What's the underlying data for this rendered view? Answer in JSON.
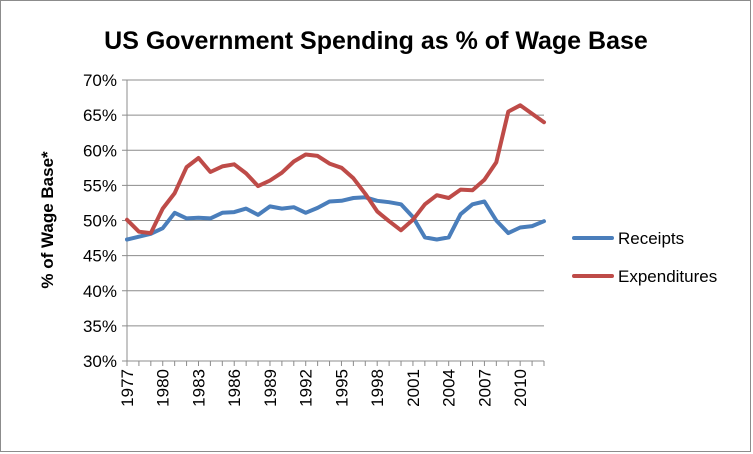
{
  "chart_data": {
    "type": "line",
    "title": "US Government Spending as % of Wage Base",
    "xlabel": "",
    "ylabel": "% of Wage Base*",
    "x": [
      1977,
      1978,
      1979,
      1980,
      1981,
      1982,
      1983,
      1984,
      1985,
      1986,
      1987,
      1988,
      1989,
      1990,
      1991,
      1992,
      1993,
      1994,
      1995,
      1996,
      1997,
      1998,
      1999,
      2000,
      2001,
      2002,
      2003,
      2004,
      2005,
      2006,
      2007,
      2008,
      2009,
      2010,
      2011,
      2012
    ],
    "x_tick_labels": [
      "1977",
      "1980",
      "1983",
      "1986",
      "1989",
      "1992",
      "1995",
      "1998",
      "2001",
      "2004",
      "2007",
      "2010"
    ],
    "ylim": [
      30,
      70
    ],
    "y_tick_labels": [
      "30%",
      "35%",
      "40%",
      "45%",
      "50%",
      "55%",
      "60%",
      "65%",
      "70%"
    ],
    "grid": true,
    "legend_position": "right",
    "series": [
      {
        "name": "Receipts",
        "color": "#4a7ebb",
        "values": [
          47.3,
          47.7,
          48.1,
          48.9,
          51.1,
          50.3,
          50.4,
          50.3,
          51.1,
          51.2,
          51.7,
          50.8,
          52.0,
          51.7,
          51.9,
          51.1,
          51.8,
          52.7,
          52.8,
          53.2,
          53.3,
          52.8,
          52.6,
          52.3,
          50.5,
          47.6,
          47.3,
          47.6,
          50.9,
          52.3,
          52.7,
          50.0,
          48.2,
          49.0,
          49.2,
          49.9
        ]
      },
      {
        "name": "Expenditures",
        "color": "#be4b48",
        "values": [
          50.1,
          48.4,
          48.2,
          51.7,
          53.9,
          57.6,
          58.9,
          56.9,
          57.7,
          58.0,
          56.7,
          54.9,
          55.7,
          56.8,
          58.4,
          59.4,
          59.2,
          58.1,
          57.5,
          56.0,
          53.8,
          51.3,
          49.9,
          48.6,
          50.1,
          52.3,
          53.6,
          53.2,
          54.4,
          54.3,
          55.8,
          58.3,
          65.5,
          66.4,
          65.2,
          64.0
        ]
      }
    ]
  }
}
